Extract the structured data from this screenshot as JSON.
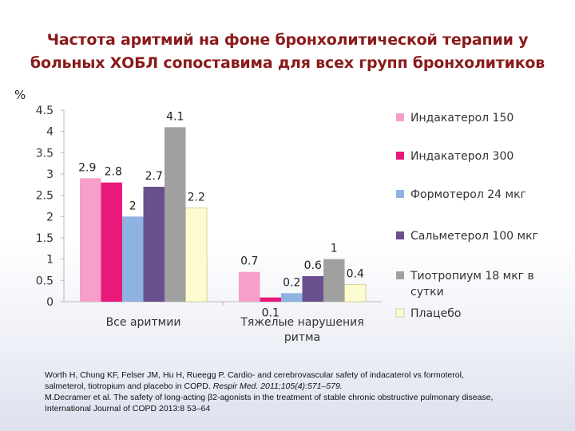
{
  "title": {
    "line1": "Частота аритмий на фоне бронхолитической терапии у",
    "line2": "больных ХОБЛ сопоставима для всех групп бронхолитиков"
  },
  "unit": "%",
  "chart_data": {
    "type": "bar",
    "categories": [
      [
        "Все аритмии"
      ],
      [
        "Тяжелые нарушения",
        "ритма"
      ]
    ],
    "ylim": [
      0,
      4.5
    ],
    "yticks": [
      "0",
      "0.5",
      "1",
      "1.5",
      "2",
      "2.5",
      "3",
      "3.5",
      "4",
      "4.5"
    ],
    "grid": false,
    "legend_position": "right",
    "series": [
      {
        "name": [
          "Индакатерол 150"
        ],
        "color": "#f79fc8",
        "values": [
          2.9,
          0.7
        ],
        "labels": [
          "2.9",
          "0.7"
        ]
      },
      {
        "name": [
          "Индакатерол 300"
        ],
        "color": "#e8197a",
        "values": [
          2.8,
          0.1
        ],
        "labels": [
          "2.8",
          "0.1"
        ]
      },
      {
        "name": [
          "Формотерол 24 мкг"
        ],
        "color": "#8fb3e0",
        "values": [
          2.0,
          0.2
        ],
        "labels": [
          "2",
          "0.2"
        ]
      },
      {
        "name": [
          "Сальметерол 100 мкг"
        ],
        "color": "#6a4f8e",
        "values": [
          2.7,
          0.6
        ],
        "labels": [
          "2.7",
          "0.6"
        ]
      },
      {
        "name": [
          "Тиотропиум 18 мкг в",
          "сутки"
        ],
        "color": "#a0a0a0",
        "values": [
          4.1,
          1.0
        ],
        "labels": [
          "4.1",
          "1"
        ]
      },
      {
        "name": [
          "Плацебо"
        ],
        "color": "#fcfcd0",
        "values": [
          2.2,
          0.4
        ],
        "labels": [
          "2.2",
          "0.4"
        ]
      }
    ]
  },
  "references": {
    "line1": "Worth H, Chung KF, Felser JM, Hu H, Rueegg P. Cardio- and cerebrovascular safety of indacaterol vs formoterol,",
    "line2_plain": "salmeterol, tiotropium and placebo in COPD. ",
    "line2_italic": "Respir Med. 2011;105(4):571–579.",
    "line3": "M.Decramer et al. The safety of long-acting β2-agonists in the treatment of stable chronic obstructive pulmonary disease,",
    "line4": " International Journal of COPD 2013:8 53–64"
  }
}
